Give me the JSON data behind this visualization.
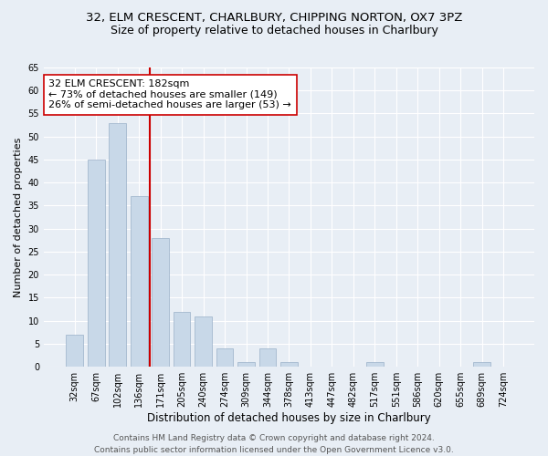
{
  "title1": "32, ELM CRESCENT, CHARLBURY, CHIPPING NORTON, OX7 3PZ",
  "title2": "Size of property relative to detached houses in Charlbury",
  "xlabel": "Distribution of detached houses by size in Charlbury",
  "ylabel": "Number of detached properties",
  "categories": [
    "32sqm",
    "67sqm",
    "102sqm",
    "136sqm",
    "171sqm",
    "205sqm",
    "240sqm",
    "274sqm",
    "309sqm",
    "344sqm",
    "378sqm",
    "413sqm",
    "447sqm",
    "482sqm",
    "517sqm",
    "551sqm",
    "586sqm",
    "620sqm",
    "655sqm",
    "689sqm",
    "724sqm"
  ],
  "values": [
    7,
    45,
    53,
    37,
    28,
    12,
    11,
    4,
    1,
    4,
    1,
    0,
    0,
    0,
    1,
    0,
    0,
    0,
    0,
    1,
    0
  ],
  "bar_color": "#c8d8e8",
  "bar_edge_color": "#9ab0c8",
  "vline_x_index": 3.5,
  "vline_color": "#cc0000",
  "annotation_text": "32 ELM CRESCENT: 182sqm\n← 73% of detached houses are smaller (149)\n26% of semi-detached houses are larger (53) →",
  "annotation_box_facecolor": "#ffffff",
  "annotation_box_edgecolor": "#cc0000",
  "ylim": [
    0,
    65
  ],
  "yticks": [
    0,
    5,
    10,
    15,
    20,
    25,
    30,
    35,
    40,
    45,
    50,
    55,
    60,
    65
  ],
  "bg_color": "#e8eef5",
  "plot_bg_color": "#e8eef5",
  "footer": "Contains HM Land Registry data © Crown copyright and database right 2024.\nContains public sector information licensed under the Open Government Licence v3.0.",
  "title1_fontsize": 9.5,
  "title2_fontsize": 9,
  "xlabel_fontsize": 8.5,
  "ylabel_fontsize": 8,
  "tick_fontsize": 7,
  "annotation_fontsize": 8,
  "footer_fontsize": 6.5
}
